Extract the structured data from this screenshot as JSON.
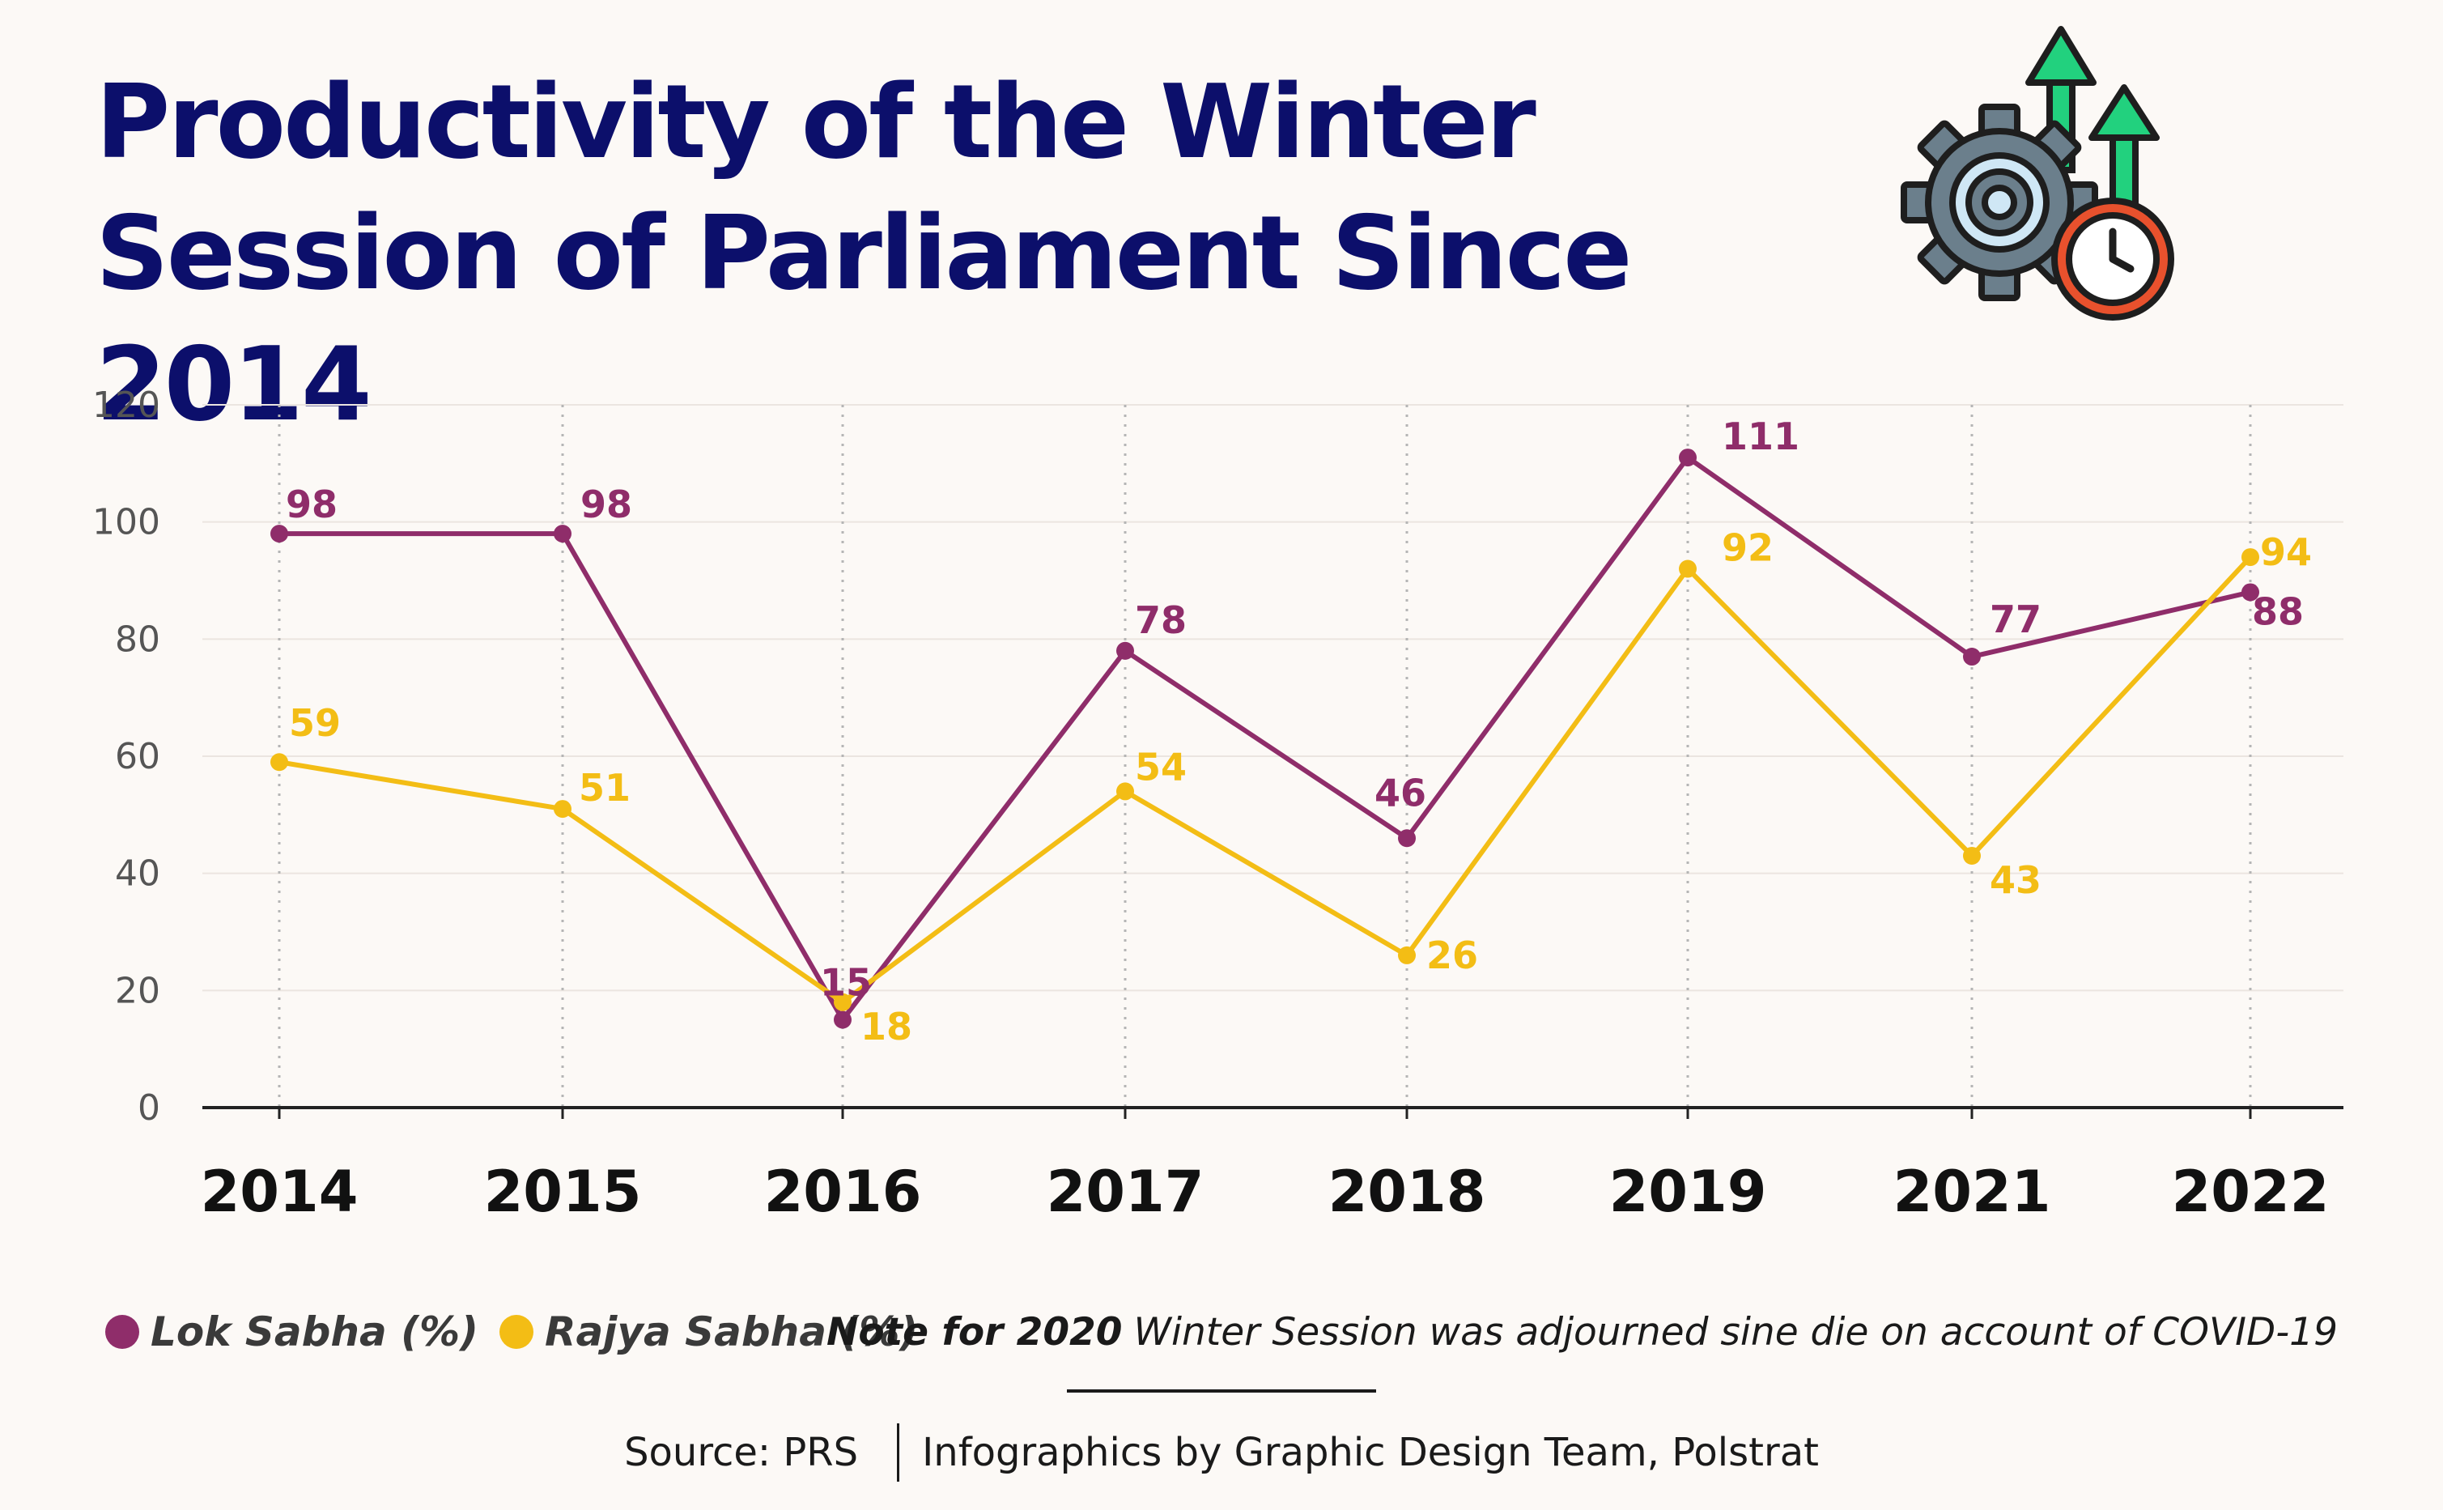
{
  "title": {
    "line1": "Productivity of the Winter",
    "line2": "Session of Parliament Since 2014"
  },
  "chart_data": {
    "type": "line",
    "title": "Productivity of the Winter Session of Parliament Since 2014",
    "categories": [
      "2014",
      "2015",
      "2016",
      "2017",
      "2018",
      "2019",
      "2021",
      "2022"
    ],
    "series": [
      {
        "name": "Lok Sabha (%)",
        "color": "#8f2d6a",
        "values": [
          98,
          98,
          15,
          78,
          46,
          111,
          77,
          88
        ]
      },
      {
        "name": "Rajya Sabha (%)",
        "color": "#f3bd15",
        "values": [
          59,
          51,
          18,
          54,
          26,
          92,
          43,
          94
        ]
      }
    ],
    "yticks": [
      0,
      20,
      40,
      60,
      80,
      100,
      120
    ],
    "ylim": [
      0,
      120
    ],
    "xlabel": "",
    "ylabel": "",
    "grid": "vertical dotted lines at each category, horizontal faint lines",
    "legend_position": "bottom-left"
  },
  "legend": [
    {
      "label": "Lok Sabha (%)",
      "color": "#8f2d6a"
    },
    {
      "label": "Rajya Sabha (%)",
      "color": "#f3bd15"
    }
  ],
  "note": {
    "label": "Note for 2020",
    "text": "Winter Session was adjourned sine die on account of COVID-19"
  },
  "footer": {
    "source": "Source: PRS",
    "credit": "Infographics by Graphic Design Team, Polstrat"
  },
  "icon": {
    "name": "gear-growth-clock-icon"
  },
  "colors": {
    "title": "#0c0f6b",
    "background": "#fcf9f6",
    "lok_sabha": "#8f2d6a",
    "rajya_sabha": "#f3bd15"
  }
}
